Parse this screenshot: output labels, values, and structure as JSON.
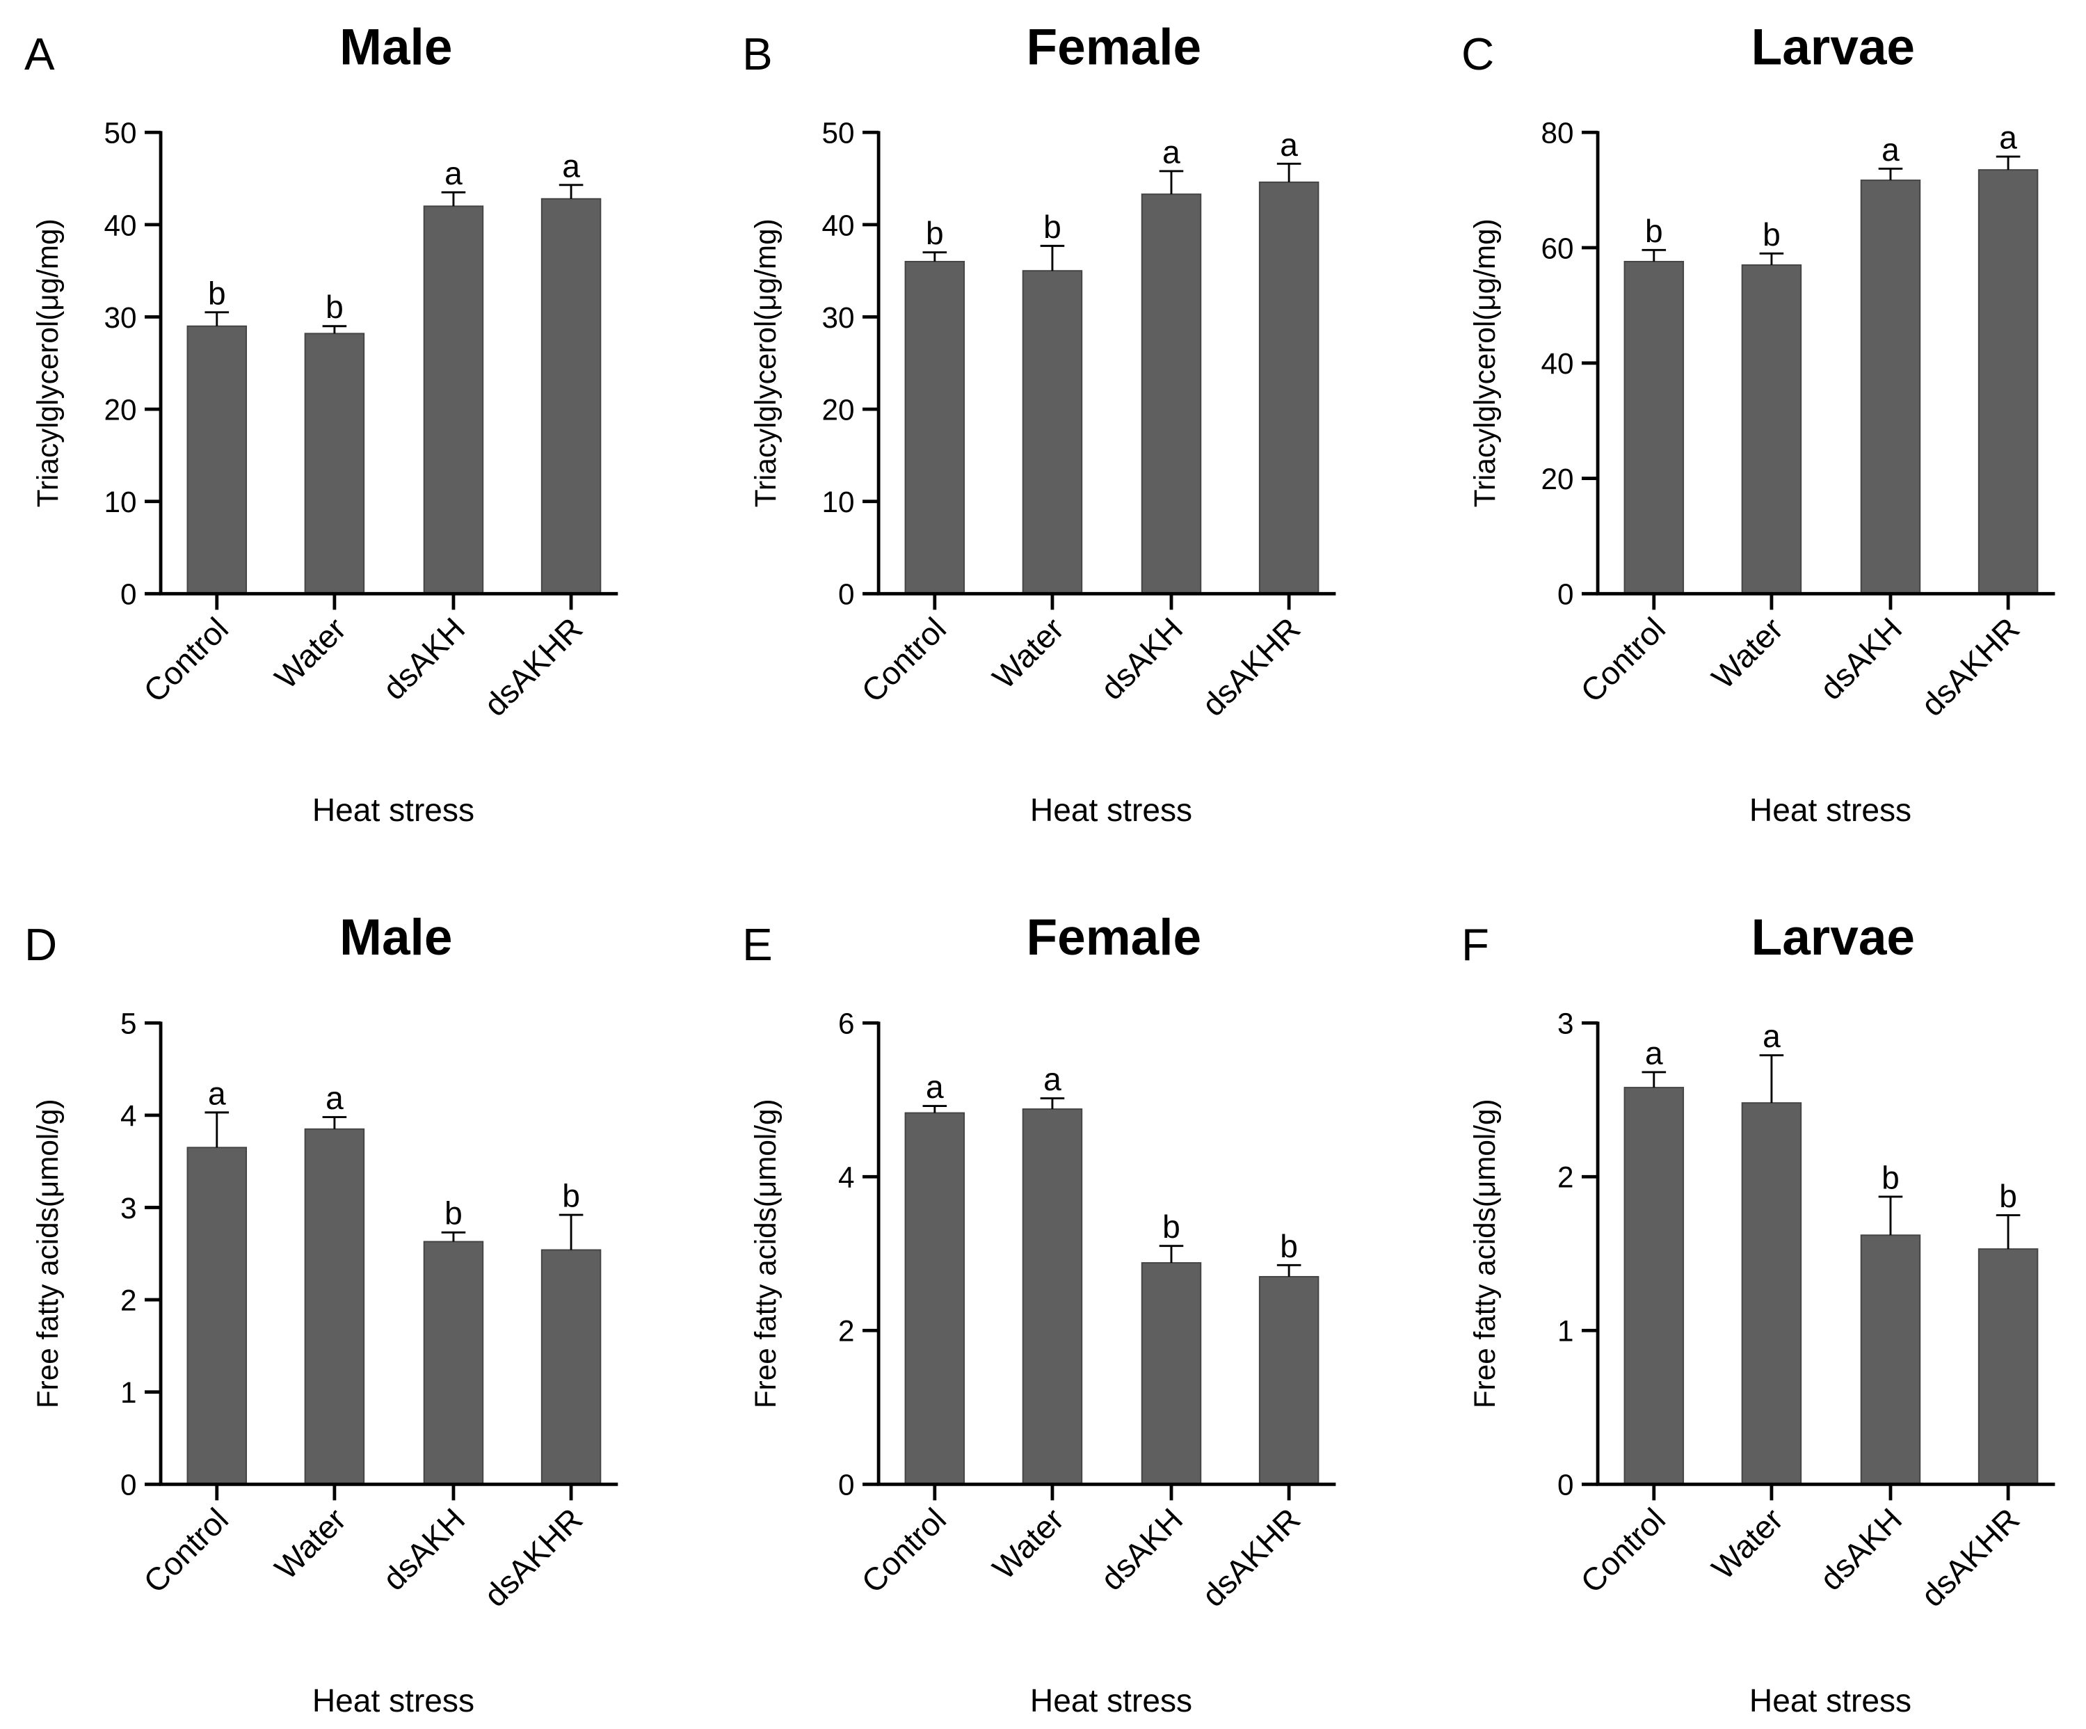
{
  "bar_color": "#5f5f5f",
  "chart_data": [
    {
      "type": "bar",
      "panel": "A",
      "title": "Male",
      "ylabel": "Triacylglycerol(μg/mg)",
      "xlabel": "Heat stress",
      "categories": [
        "Control",
        "Water",
        "dsAKH",
        "dsAKHR"
      ],
      "values": [
        29.0,
        28.2,
        42.0,
        42.8
      ],
      "errors": [
        1.5,
        0.8,
        1.5,
        1.5
      ],
      "significance": [
        "b",
        "b",
        "a",
        "a"
      ],
      "ylim": [
        0,
        50
      ],
      "yticks": [
        0,
        10,
        20,
        30,
        40,
        50
      ]
    },
    {
      "type": "bar",
      "panel": "B",
      "title": "Female",
      "ylabel": "Triacylglycerol(μg/mg)",
      "xlabel": "Heat stress",
      "categories": [
        "Control",
        "Water",
        "dsAKH",
        "dsAKHR"
      ],
      "values": [
        36.0,
        35.0,
        43.3,
        44.6
      ],
      "errors": [
        1.0,
        2.7,
        2.5,
        2.0
      ],
      "significance": [
        "b",
        "b",
        "a",
        "a"
      ],
      "ylim": [
        0,
        50
      ],
      "yticks": [
        0,
        10,
        20,
        30,
        40,
        50
      ]
    },
    {
      "type": "bar",
      "panel": "C",
      "title": "Larvae",
      "ylabel": "Triacylglycerol(μg/mg)",
      "xlabel": "Heat stress",
      "categories": [
        "Control",
        "Water",
        "dsAKH",
        "dsAKHR"
      ],
      "values": [
        57.6,
        57.0,
        71.7,
        73.5
      ],
      "errors": [
        2.0,
        2.0,
        2.0,
        2.3
      ],
      "significance": [
        "b",
        "b",
        "a",
        "a"
      ],
      "ylim": [
        0,
        80
      ],
      "yticks": [
        0,
        20,
        40,
        60,
        80
      ]
    },
    {
      "type": "bar",
      "panel": "D",
      "title": "Male",
      "ylabel": "Free fatty acids(μmol/g)",
      "xlabel": "Heat stress",
      "categories": [
        "Control",
        "Water",
        "dsAKH",
        "dsAKHR"
      ],
      "values": [
        3.65,
        3.85,
        2.63,
        2.54
      ],
      "errors": [
        0.38,
        0.13,
        0.1,
        0.38
      ],
      "significance": [
        "a",
        "a",
        "b",
        "b"
      ],
      "ylim": [
        0,
        5
      ],
      "yticks": [
        0,
        1,
        2,
        3,
        4,
        5
      ]
    },
    {
      "type": "bar",
      "panel": "E",
      "title": "Female",
      "ylabel": "Free fatty acids(μmol/g)",
      "xlabel": "Heat stress",
      "categories": [
        "Control",
        "Water",
        "dsAKH",
        "dsAKHR"
      ],
      "values": [
        4.83,
        4.88,
        2.88,
        2.7
      ],
      "errors": [
        0.09,
        0.14,
        0.22,
        0.15
      ],
      "significance": [
        "a",
        "a",
        "b",
        "b"
      ],
      "ylim": [
        0,
        6
      ],
      "yticks": [
        0,
        2,
        4,
        6
      ]
    },
    {
      "type": "bar",
      "panel": "F",
      "title": "Larvae",
      "ylabel": "Free fatty acids(μmol/g)",
      "xlabel": "Heat stress",
      "categories": [
        "Control",
        "Water",
        "dsAKH",
        "dsAKHR"
      ],
      "values": [
        2.58,
        2.48,
        1.62,
        1.53
      ],
      "errors": [
        0.1,
        0.31,
        0.25,
        0.22
      ],
      "significance": [
        "a",
        "a",
        "b",
        "b"
      ],
      "ylim": [
        0,
        3
      ],
      "yticks": [
        0,
        1,
        2,
        3
      ]
    }
  ]
}
